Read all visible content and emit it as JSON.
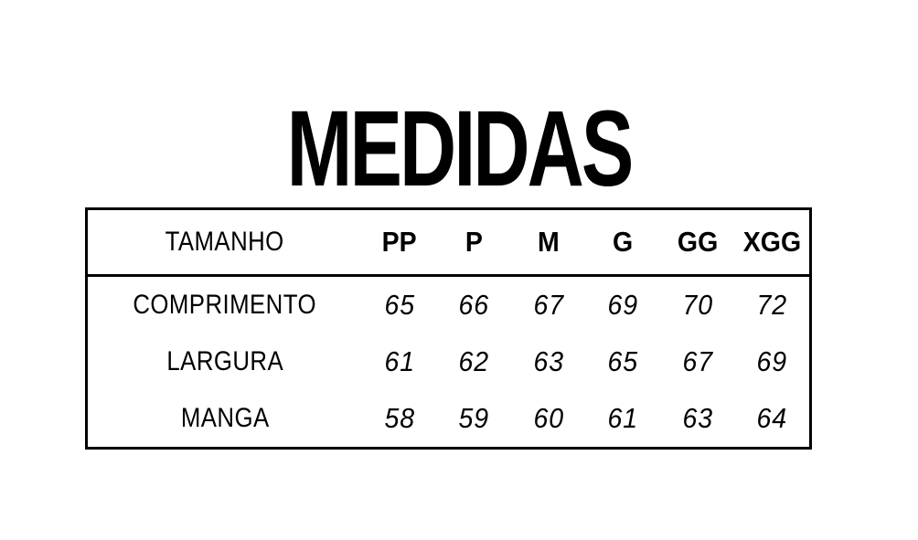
{
  "page": {
    "title": "MEDIDAS",
    "background": "#ffffff",
    "text_color": "#000000",
    "border_color": "#000000"
  },
  "chart_data": {
    "type": "table",
    "title": "MEDIDAS",
    "header": {
      "label_column": "TAMANHO",
      "size_columns": [
        "PP",
        "P",
        "M",
        "G",
        "GG",
        "XGG"
      ]
    },
    "rows": [
      {
        "label": "COMPRIMENTO",
        "values": [
          65,
          66,
          67,
          69,
          70,
          72
        ]
      },
      {
        "label": "LARGURA",
        "values": [
          61,
          62,
          63,
          65,
          67,
          69
        ]
      },
      {
        "label": "MANGA",
        "values": [
          58,
          59,
          60,
          61,
          63,
          64
        ]
      }
    ],
    "layout": {
      "grid": "outer border and header separator only",
      "legend": "none"
    }
  }
}
